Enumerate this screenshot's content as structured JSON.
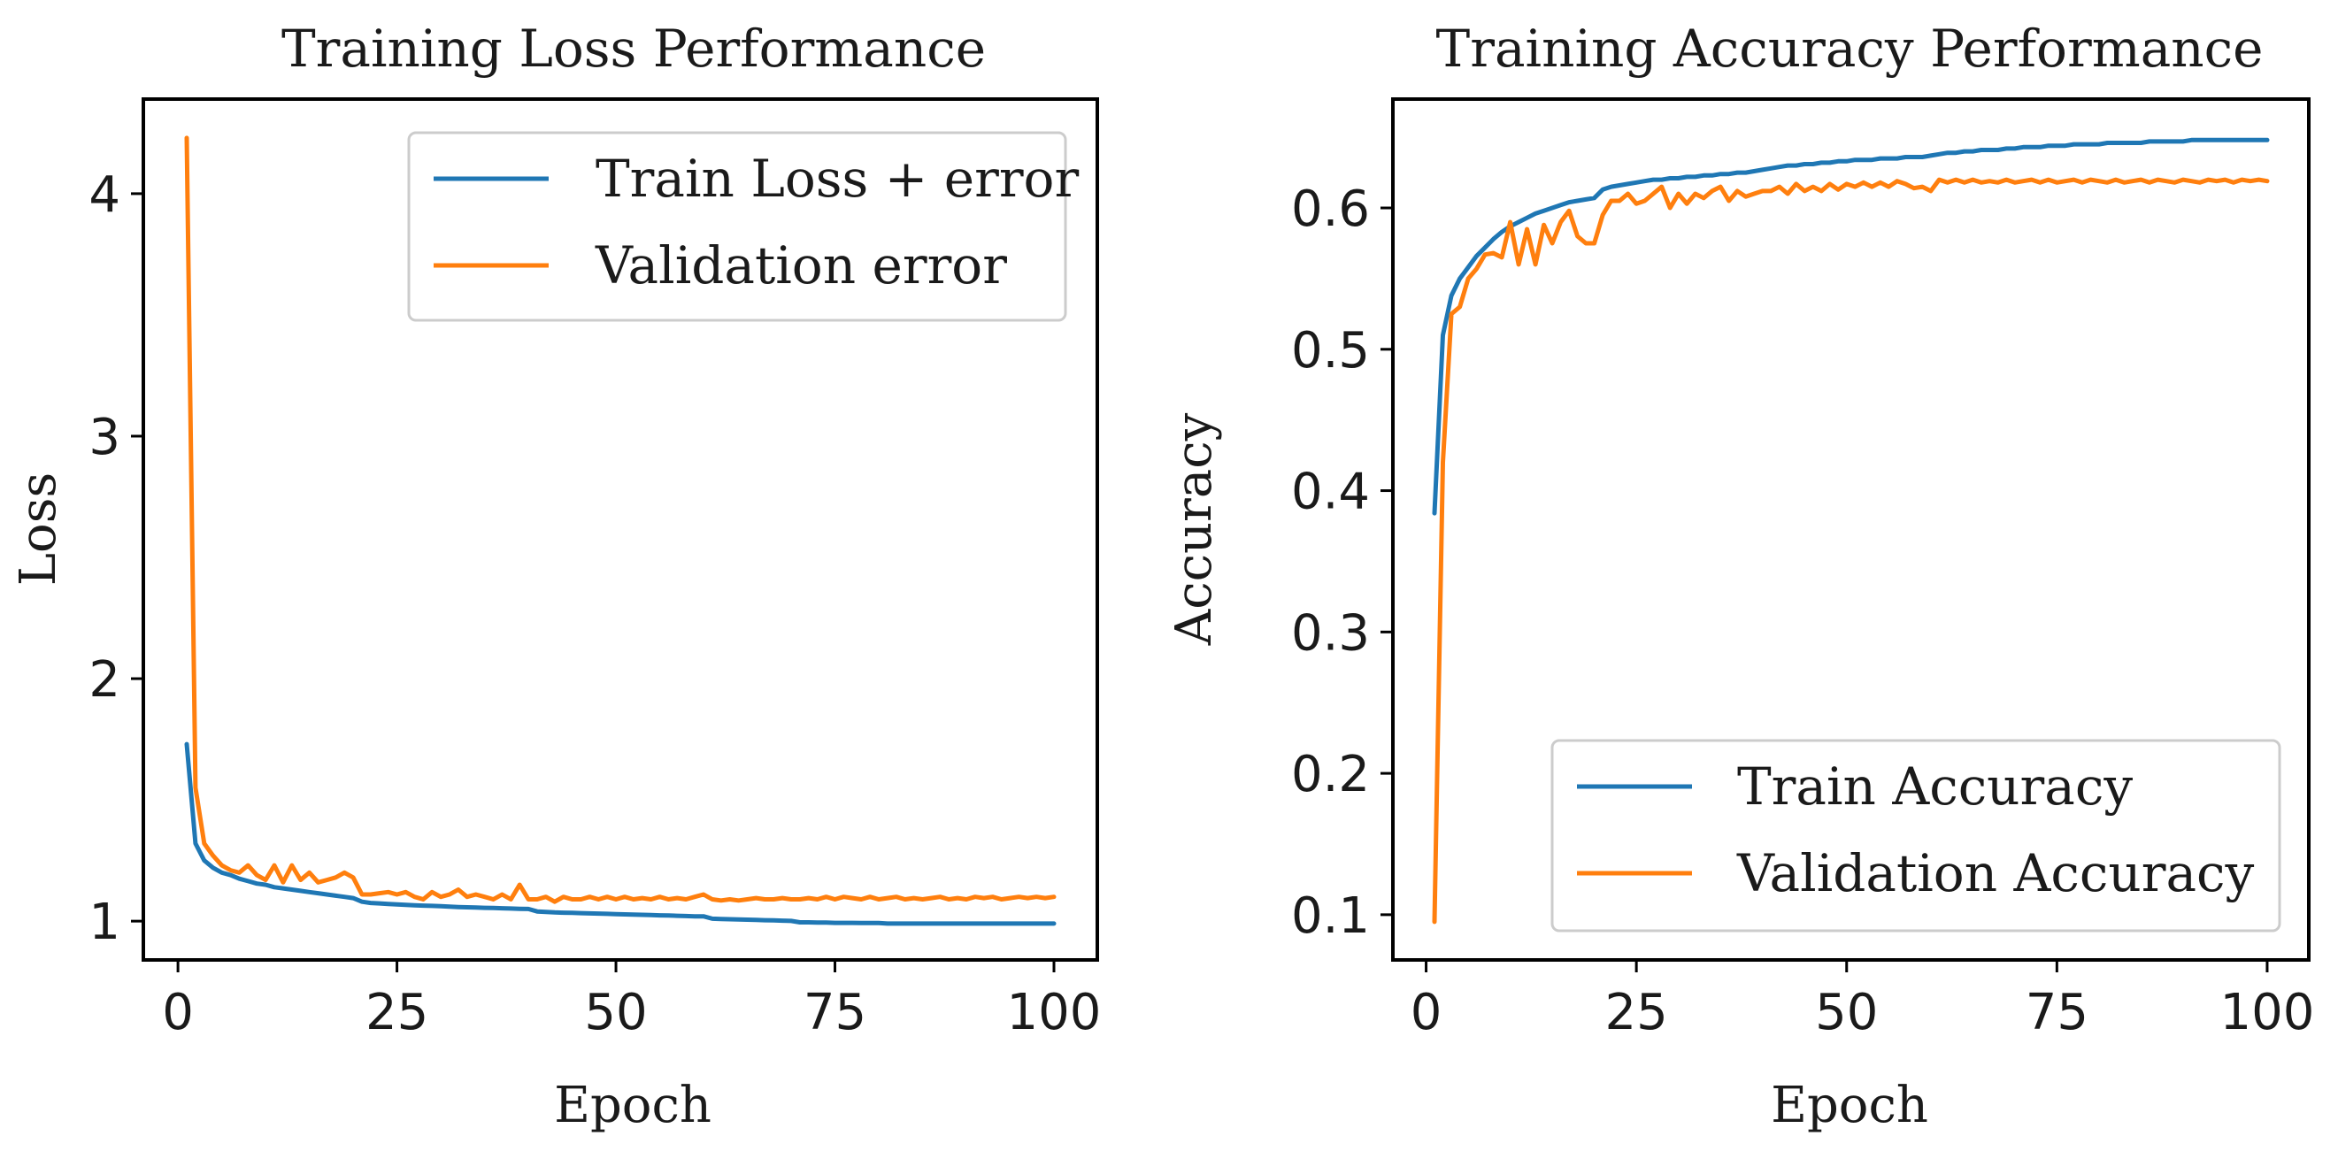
{
  "chart_data": [
    {
      "type": "line",
      "title": "Training Loss Performance",
      "xlabel": "Epoch",
      "ylabel": "Loss",
      "xlim": [
        -3.95,
        104.95
      ],
      "ylim": [
        0.84,
        4.39
      ],
      "xticks": [
        0,
        25,
        50,
        75,
        100
      ],
      "xtick_labels": [
        "0",
        "25",
        "50",
        "75",
        "100"
      ],
      "yticks": [
        1,
        2,
        3,
        4
      ],
      "ytick_labels": [
        "1",
        "2",
        "3",
        "4"
      ],
      "legend_position": "top-right",
      "series": [
        {
          "name": "Train Loss + error",
          "color": "#1f77b4",
          "x": [
            1,
            2,
            3,
            4,
            5,
            6,
            7,
            8,
            9,
            10,
            11,
            12,
            13,
            14,
            15,
            16,
            17,
            18,
            19,
            20,
            21,
            22,
            23,
            24,
            25,
            26,
            27,
            28,
            29,
            30,
            31,
            32,
            33,
            34,
            35,
            36,
            37,
            38,
            39,
            40,
            41,
            42,
            43,
            44,
            45,
            46,
            47,
            48,
            49,
            50,
            51,
            52,
            53,
            54,
            55,
            56,
            57,
            58,
            59,
            60,
            61,
            62,
            63,
            64,
            65,
            66,
            67,
            68,
            69,
            70,
            71,
            72,
            73,
            74,
            75,
            76,
            77,
            78,
            79,
            80,
            81,
            82,
            83,
            84,
            85,
            86,
            87,
            88,
            89,
            90,
            91,
            92,
            93,
            94,
            95,
            96,
            97,
            98,
            99,
            100
          ],
          "y": [
            1.73,
            1.32,
            1.25,
            1.22,
            1.2,
            1.19,
            1.175,
            1.165,
            1.155,
            1.15,
            1.14,
            1.135,
            1.13,
            1.125,
            1.12,
            1.115,
            1.11,
            1.105,
            1.1,
            1.095,
            1.08,
            1.075,
            1.073,
            1.071,
            1.069,
            1.067,
            1.065,
            1.064,
            1.063,
            1.062,
            1.06,
            1.058,
            1.057,
            1.056,
            1.055,
            1.054,
            1.053,
            1.052,
            1.051,
            1.05,
            1.04,
            1.038,
            1.036,
            1.035,
            1.034,
            1.033,
            1.032,
            1.031,
            1.03,
            1.029,
            1.028,
            1.027,
            1.026,
            1.025,
            1.024,
            1.023,
            1.022,
            1.021,
            1.02,
            1.02,
            1.01,
            1.009,
            1.008,
            1.007,
            1.006,
            1.005,
            1.004,
            1.003,
            1.002,
            1.001,
            0.995,
            0.995,
            0.994,
            0.994,
            0.993,
            0.993,
            0.993,
            0.992,
            0.992,
            0.992,
            0.99,
            0.99,
            0.99,
            0.99,
            0.99,
            0.99,
            0.99,
            0.99,
            0.99,
            0.99,
            0.99,
            0.99,
            0.99,
            0.99,
            0.99,
            0.99,
            0.99,
            0.99,
            0.99,
            0.99
          ]
        },
        {
          "name": "Validation error",
          "color": "#ff7f0e",
          "x": [
            1,
            2,
            3,
            4,
            5,
            6,
            7,
            8,
            9,
            10,
            11,
            12,
            13,
            14,
            15,
            16,
            17,
            18,
            19,
            20,
            21,
            22,
            23,
            24,
            25,
            26,
            27,
            28,
            29,
            30,
            31,
            32,
            33,
            34,
            35,
            36,
            37,
            38,
            39,
            40,
            41,
            42,
            43,
            44,
            45,
            46,
            47,
            48,
            49,
            50,
            51,
            52,
            53,
            54,
            55,
            56,
            57,
            58,
            59,
            60,
            61,
            62,
            63,
            64,
            65,
            66,
            67,
            68,
            69,
            70,
            71,
            72,
            73,
            74,
            75,
            76,
            77,
            78,
            79,
            80,
            81,
            82,
            83,
            84,
            85,
            86,
            87,
            88,
            89,
            90,
            91,
            92,
            93,
            94,
            95,
            96,
            97,
            98,
            99,
            100
          ],
          "y": [
            4.23,
            1.55,
            1.32,
            1.27,
            1.23,
            1.21,
            1.2,
            1.23,
            1.19,
            1.17,
            1.23,
            1.16,
            1.23,
            1.17,
            1.2,
            1.16,
            1.17,
            1.18,
            1.2,
            1.18,
            1.11,
            1.11,
            1.115,
            1.12,
            1.11,
            1.12,
            1.1,
            1.09,
            1.12,
            1.1,
            1.11,
            1.13,
            1.1,
            1.11,
            1.1,
            1.09,
            1.11,
            1.09,
            1.15,
            1.09,
            1.09,
            1.1,
            1.08,
            1.1,
            1.09,
            1.09,
            1.1,
            1.09,
            1.1,
            1.09,
            1.1,
            1.09,
            1.095,
            1.09,
            1.1,
            1.09,
            1.095,
            1.09,
            1.1,
            1.11,
            1.09,
            1.085,
            1.09,
            1.085,
            1.09,
            1.095,
            1.09,
            1.09,
            1.095,
            1.09,
            1.09,
            1.095,
            1.09,
            1.1,
            1.09,
            1.1,
            1.095,
            1.09,
            1.1,
            1.09,
            1.095,
            1.1,
            1.09,
            1.095,
            1.09,
            1.095,
            1.1,
            1.09,
            1.095,
            1.09,
            1.1,
            1.095,
            1.1,
            1.09,
            1.095,
            1.1,
            1.095,
            1.1,
            1.095,
            1.1
          ]
        }
      ]
    },
    {
      "type": "line",
      "title": "Training Accuracy Performance",
      "xlabel": "Epoch",
      "ylabel": "Accuracy",
      "xlim": [
        -3.95,
        104.95
      ],
      "ylim": [
        0.068,
        0.677
      ],
      "xticks": [
        0,
        25,
        50,
        75,
        100
      ],
      "xtick_labels": [
        "0",
        "25",
        "50",
        "75",
        "100"
      ],
      "yticks": [
        0.1,
        0.2,
        0.3,
        0.4,
        0.5,
        0.6
      ],
      "ytick_labels": [
        "0.1",
        "0.2",
        "0.3",
        "0.4",
        "0.5",
        "0.6"
      ],
      "legend_position": "bottom-right",
      "series": [
        {
          "name": "Train Accuracy",
          "color": "#1f77b4",
          "x": [
            1,
            2,
            3,
            4,
            5,
            6,
            7,
            8,
            9,
            10,
            11,
            12,
            13,
            14,
            15,
            16,
            17,
            18,
            19,
            20,
            21,
            22,
            23,
            24,
            25,
            26,
            27,
            28,
            29,
            30,
            31,
            32,
            33,
            34,
            35,
            36,
            37,
            38,
            39,
            40,
            41,
            42,
            43,
            44,
            45,
            46,
            47,
            48,
            49,
            50,
            51,
            52,
            53,
            54,
            55,
            56,
            57,
            58,
            59,
            60,
            61,
            62,
            63,
            64,
            65,
            66,
            67,
            68,
            69,
            70,
            71,
            72,
            73,
            74,
            75,
            76,
            77,
            78,
            79,
            80,
            81,
            82,
            83,
            84,
            85,
            86,
            87,
            88,
            89,
            90,
            91,
            92,
            93,
            94,
            95,
            96,
            97,
            98,
            99,
            100
          ],
          "y": [
            0.384,
            0.51,
            0.538,
            0.55,
            0.558,
            0.566,
            0.572,
            0.578,
            0.583,
            0.587,
            0.59,
            0.593,
            0.596,
            0.598,
            0.6,
            0.602,
            0.604,
            0.605,
            0.606,
            0.607,
            0.613,
            0.615,
            0.616,
            0.617,
            0.618,
            0.619,
            0.62,
            0.62,
            0.621,
            0.621,
            0.622,
            0.622,
            0.623,
            0.623,
            0.624,
            0.624,
            0.625,
            0.625,
            0.626,
            0.627,
            0.628,
            0.629,
            0.63,
            0.63,
            0.631,
            0.631,
            0.632,
            0.632,
            0.633,
            0.633,
            0.634,
            0.634,
            0.634,
            0.635,
            0.635,
            0.635,
            0.636,
            0.636,
            0.636,
            0.637,
            0.638,
            0.639,
            0.639,
            0.64,
            0.64,
            0.641,
            0.641,
            0.641,
            0.642,
            0.642,
            0.643,
            0.643,
            0.643,
            0.644,
            0.644,
            0.644,
            0.645,
            0.645,
            0.645,
            0.645,
            0.646,
            0.646,
            0.646,
            0.646,
            0.646,
            0.647,
            0.647,
            0.647,
            0.647,
            0.647,
            0.648,
            0.648,
            0.648,
            0.648,
            0.648,
            0.648,
            0.648,
            0.648,
            0.648,
            0.648
          ]
        },
        {
          "name": "Validation Accuracy",
          "color": "#ff7f0e",
          "x": [
            1,
            2,
            3,
            4,
            5,
            6,
            7,
            8,
            9,
            10,
            11,
            12,
            13,
            14,
            15,
            16,
            17,
            18,
            19,
            20,
            21,
            22,
            23,
            24,
            25,
            26,
            27,
            28,
            29,
            30,
            31,
            32,
            33,
            34,
            35,
            36,
            37,
            38,
            39,
            40,
            41,
            42,
            43,
            44,
            45,
            46,
            47,
            48,
            49,
            50,
            51,
            52,
            53,
            54,
            55,
            56,
            57,
            58,
            59,
            60,
            61,
            62,
            63,
            64,
            65,
            66,
            67,
            68,
            69,
            70,
            71,
            72,
            73,
            74,
            75,
            76,
            77,
            78,
            79,
            80,
            81,
            82,
            83,
            84,
            85,
            86,
            87,
            88,
            89,
            90,
            91,
            92,
            93,
            94,
            95,
            96,
            97,
            98,
            99,
            100
          ],
          "y": [
            0.095,
            0.42,
            0.525,
            0.53,
            0.55,
            0.557,
            0.567,
            0.568,
            0.565,
            0.59,
            0.56,
            0.585,
            0.56,
            0.588,
            0.575,
            0.59,
            0.598,
            0.58,
            0.575,
            0.575,
            0.595,
            0.605,
            0.605,
            0.61,
            0.603,
            0.605,
            0.61,
            0.615,
            0.6,
            0.61,
            0.603,
            0.61,
            0.607,
            0.612,
            0.615,
            0.605,
            0.612,
            0.608,
            0.61,
            0.612,
            0.612,
            0.615,
            0.61,
            0.617,
            0.612,
            0.615,
            0.612,
            0.617,
            0.613,
            0.617,
            0.615,
            0.618,
            0.615,
            0.618,
            0.615,
            0.619,
            0.617,
            0.614,
            0.615,
            0.612,
            0.62,
            0.618,
            0.62,
            0.618,
            0.62,
            0.618,
            0.619,
            0.618,
            0.62,
            0.618,
            0.619,
            0.62,
            0.618,
            0.62,
            0.618,
            0.619,
            0.62,
            0.618,
            0.62,
            0.619,
            0.618,
            0.62,
            0.618,
            0.619,
            0.62,
            0.618,
            0.62,
            0.619,
            0.618,
            0.62,
            0.619,
            0.618,
            0.62,
            0.619,
            0.62,
            0.618,
            0.62,
            0.619,
            0.62,
            0.619
          ]
        }
      ]
    }
  ]
}
